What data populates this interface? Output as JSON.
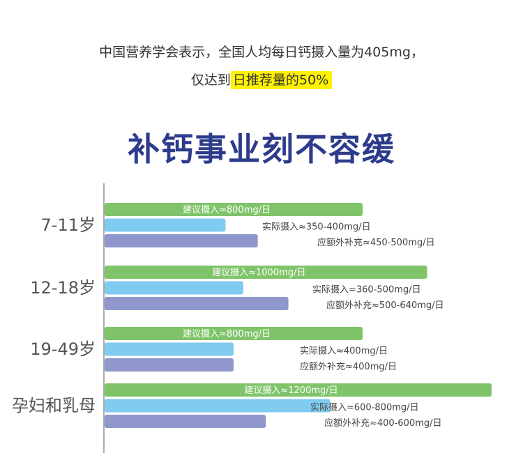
{
  "intro": {
    "line1": "中国营养学会表示，全国人均每日钙摄入量为405mg，",
    "line2_prefix": "仅达到",
    "line2_highlight": "日推荐量的50%"
  },
  "headline": "补钙事业刻不容缓",
  "colors": {
    "recommended": "#80c46a",
    "actual": "#80cbf0",
    "supplement": "#8f97cc",
    "axis": "#aaaaaa",
    "label": "#555555",
    "highlight": "#fff200",
    "headline": "#2d3b8c"
  },
  "chart_data": {
    "type": "bar",
    "orientation": "horizontal",
    "unit": "mg/日",
    "categories": [
      "7-11岁",
      "12-18岁",
      "19-49岁",
      "孕妇和乳母"
    ],
    "series": [
      {
        "key": "recommended",
        "values": [
          800,
          1000,
          800,
          1200
        ],
        "labels": [
          "建议摄入≈800mg/日",
          "建议摄入≈1000mg/日",
          "建议摄入≈800mg/日",
          "建议摄入≈1200mg/日"
        ]
      },
      {
        "key": "actual",
        "values": [
          375,
          430,
          400,
          700
        ],
        "labels": [
          "实际摄入≈350-400mg/日",
          "实际摄入≈360-500mg/日",
          "实际摄入≈400mg/日",
          "实际摄入≈600-800mg/日"
        ]
      },
      {
        "key": "supplement",
        "values": [
          475,
          570,
          400,
          500
        ],
        "labels": [
          "应额外补充≈450-500mg/日",
          "应额外补充≈500-640mg/日",
          "应额外补充≈400mg/日",
          "应额外补充≈400-600mg/日"
        ]
      }
    ]
  }
}
